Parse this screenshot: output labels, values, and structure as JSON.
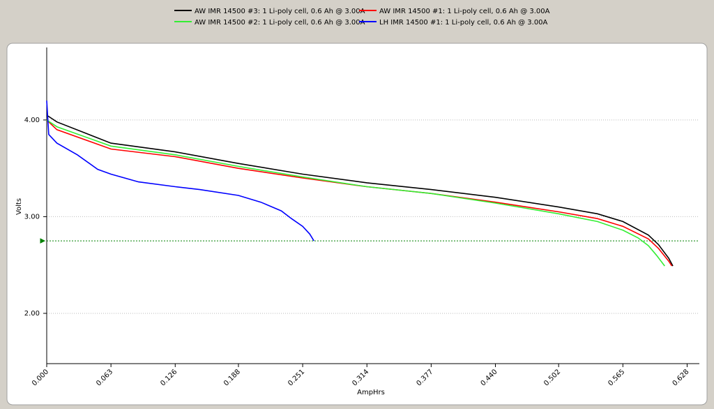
{
  "chart_data": {
    "type": "line",
    "xlabel": "AmpHrs",
    "ylabel": "Volts",
    "xlim": [
      0,
      0.64
    ],
    "ylim": [
      1.48,
      4.75
    ],
    "xticks": [
      {
        "value": 0,
        "label": "0.000"
      },
      0.063,
      0.126,
      0.188,
      0.251,
      0.314,
      0.377,
      {
        "value": 0.44,
        "label": "0.440"
      },
      0.502,
      0.565,
      0.628
    ],
    "yticks": [
      {
        "value": 2,
        "label": "2.00"
      },
      {
        "value": 3,
        "label": "3.00"
      },
      {
        "value": 4,
        "label": "4.00"
      }
    ],
    "grid": true,
    "hline": {
      "value": 2.75,
      "color": "#008000"
    },
    "series": [
      {
        "name": "AW IMR 14500 #3: 1 Li-poly cell, 0.6 Ah @ 3.00A",
        "color": "#000000",
        "x": [
          0,
          0.01,
          0.063,
          0.126,
          0.188,
          0.251,
          0.314,
          0.377,
          0.44,
          0.502,
          0.54,
          0.565,
          0.59,
          0.6,
          0.61,
          0.614
        ],
        "values": [
          4.05,
          3.98,
          3.76,
          3.67,
          3.55,
          3.44,
          3.35,
          3.28,
          3.2,
          3.1,
          3.03,
          2.95,
          2.81,
          2.71,
          2.57,
          2.49
        ]
      },
      {
        "name": "AW IMR 14500 #1: 1 Li-poly cell, 0.6 Ah @ 3.00A",
        "color": "#ff0000",
        "x": [
          0,
          0.01,
          0.063,
          0.126,
          0.188,
          0.251,
          0.314,
          0.377,
          0.44,
          0.502,
          0.54,
          0.565,
          0.59,
          0.6,
          0.61,
          0.613
        ],
        "values": [
          4.0,
          3.9,
          3.7,
          3.62,
          3.5,
          3.4,
          3.31,
          3.24,
          3.15,
          3.05,
          2.98,
          2.9,
          2.77,
          2.67,
          2.54,
          2.49
        ]
      },
      {
        "name": "AW IMR 14500 #2: 1 Li-poly cell, 0.6 Ah @ 3.00A",
        "color": "#33ee33",
        "x": [
          0,
          0.01,
          0.063,
          0.126,
          0.188,
          0.251,
          0.314,
          0.377,
          0.44,
          0.502,
          0.54,
          0.565,
          0.58,
          0.59,
          0.598,
          0.606
        ],
        "values": [
          4.0,
          3.93,
          3.73,
          3.64,
          3.52,
          3.41,
          3.31,
          3.24,
          3.14,
          3.03,
          2.95,
          2.86,
          2.78,
          2.7,
          2.6,
          2.49
        ]
      },
      {
        "name": "LH IMR 14500 #1: 1 Li-poly cell, 0.6 Ah @ 3.00A",
        "color": "#0000ff",
        "x": [
          0,
          0.002,
          0.01,
          0.03,
          0.05,
          0.063,
          0.09,
          0.126,
          0.15,
          0.188,
          0.21,
          0.23,
          0.24,
          0.251,
          0.258,
          0.262
        ],
        "values": [
          4.2,
          3.85,
          3.76,
          3.64,
          3.49,
          3.44,
          3.36,
          3.31,
          3.28,
          3.22,
          3.15,
          3.06,
          2.98,
          2.9,
          2.82,
          2.75
        ]
      }
    ]
  }
}
